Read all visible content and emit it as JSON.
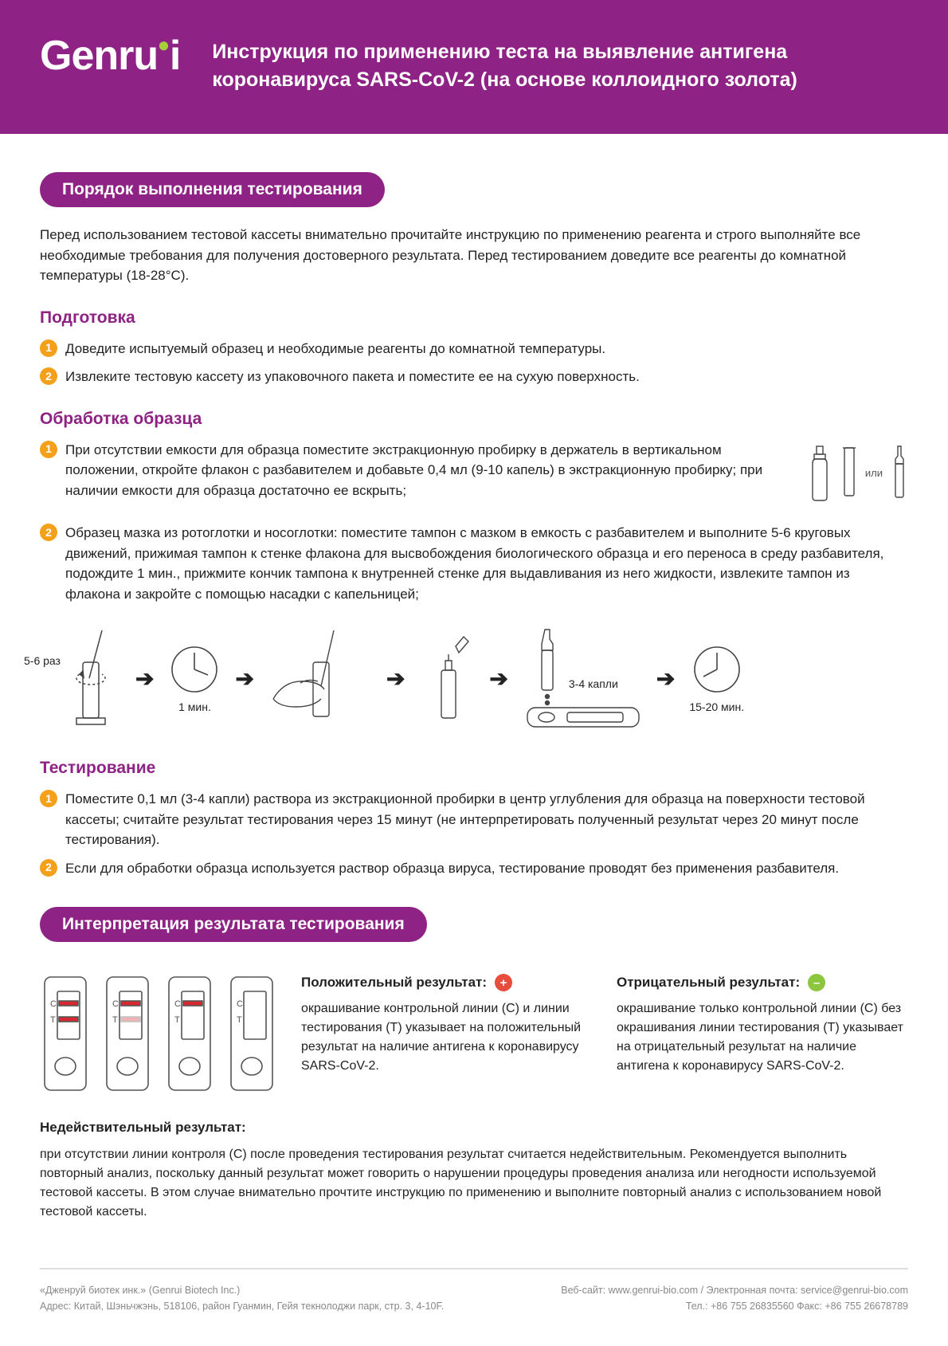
{
  "brand": {
    "name": "Genru",
    "accent_dot_color": "#a6ce39"
  },
  "colors": {
    "primary": "#8e2285",
    "bullet": "#f4a01b",
    "positive": "#e74c3c",
    "negative": "#8cc63f",
    "line_red": "#d7282f",
    "stroke": "#444444",
    "footer_text": "#888888"
  },
  "header": {
    "title": "Инструкция по применению теста на выявление антигена коронавируса SARS-CoV-2 (на основе коллоидного золота)"
  },
  "section1": {
    "pill": "Порядок выполнения тестирования",
    "intro": "Перед использованием тестовой кассеты внимательно прочитайте инструкцию по применению реагента и строго выполняйте все необходимые требования для получения достоверного результата. Перед тестированием доведите все реагенты до комнатной температуры (18-28°C).",
    "prep_heading": "Подготовка",
    "prep_items": [
      "Доведите испытуемый образец и необходимые реагенты до комнатной температуры.",
      "Извлеките тестовую кассету из упаковочного пакета и поместите ее на сухую поверхность."
    ],
    "proc_heading": "Обработка образца",
    "proc_items": [
      "При отсутствии емкости для образца поместите экстракционную пробирку в держатель в вертикальном положении, откройте флакон с разбавителем и добавьте 0,4 мл (9-10 капель) в экстракционную пробирку; при наличии емкости для образца достаточно ее вскрыть;",
      "Образец мазка из ротоглотки и носоглотки: поместите тампон с мазком в емкость с разбавителем и выполните 5-6 круговых движений, прижимая тампон к стенке флакона для высвобождения биологического образца и его переноса в среду разбавителя, подождите 1 мин., прижмите кончик тампона к внутренней стенке для выдавливания из него жидкости, извлеките тампон из флакона и закройте с помощью насадки с капельницей;"
    ],
    "or_label": "или",
    "diagram": {
      "swirl_label": "5-6 раз",
      "wait1_label": "1 мин.",
      "drops_label": "3-4 капли",
      "wait2_label": "15-20 мин."
    },
    "test_heading": "Тестирование",
    "test_items": [
      "Поместите 0,1 мл (3-4 капли) раствора из экстракционной пробирки в центр углубления для образца на поверхности тестовой кассеты; считайте результат тестирования через 15 минут (не интерпретировать полученный результат через 20 минут после тестирования).",
      "Если для обработки образца используется раствор образца вируса, тестирование проводят без применения разбавителя."
    ]
  },
  "section2": {
    "pill": "Интерпретация результата тестирования",
    "pos_title": "Положительный результат:",
    "pos_text": "окрашивание контрольной линии (C) и линии тестирования (T) указывает на положительный результат на наличие антигена к коронавирусу SARS-CoV-2.",
    "neg_title": "Отрицательный результат:",
    "neg_text": "окрашивание только контрольной линии (C) без окрашивания линии тестирования (T) указывает на отрицательный результат на наличие антигена к коронавирусу SARS-CoV-2.",
    "invalid_title": "Недействительный результат:",
    "invalid_text": "при отсутствии линии контроля (C) после проведения тестирования результат считается недействительным. Рекомендуется выполнить повторный анализ, поскольку данный результат может говорить о нарушении процедуры проведения анализа или негодности используемой тестовой кассеты. В этом случае внимательно прочтите инструкцию по применению и выполните повторный анализ с использованием новой тестовой кассеты.",
    "cassette_labels": {
      "c": "C",
      "t": "T"
    },
    "cassettes": [
      {
        "c_line": true,
        "t_line": true,
        "t_faint": false
      },
      {
        "c_line": true,
        "t_line": true,
        "t_faint": true
      },
      {
        "c_line": true,
        "t_line": false,
        "t_faint": false
      },
      {
        "c_line": false,
        "t_line": false,
        "t_faint": false
      }
    ]
  },
  "footer": {
    "company": "«Дженруй биотек инк.» (Genrui Biotech Inc.)",
    "address": "Адрес: Китай, Шэньчжэнь, 518106, район Гуанмин, Гейя текнолоджи парк, стр. 3, 4-10F.",
    "web_email": "Веб-сайт: www.genrui-bio.com / Электронная почта: service@genrui-bio.com",
    "phones": "Тел.: +86 755 26835560 Факс: +86 755 26678789"
  }
}
